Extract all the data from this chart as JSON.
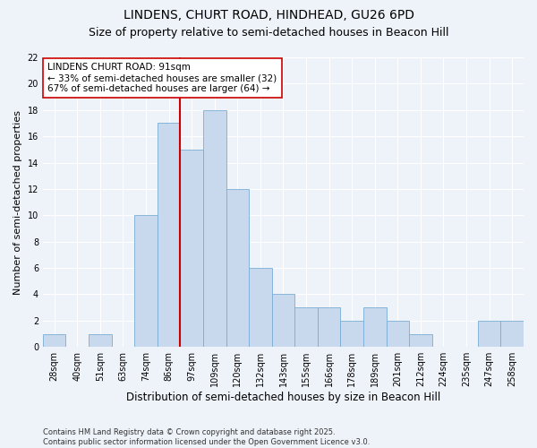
{
  "title": "LINDENS, CHURT ROAD, HINDHEAD, GU26 6PD",
  "subtitle": "Size of property relative to semi-detached houses in Beacon Hill",
  "xlabel": "Distribution of semi-detached houses by size in Beacon Hill",
  "ylabel": "Number of semi-detached properties",
  "categories": [
    "28sqm",
    "40sqm",
    "51sqm",
    "63sqm",
    "74sqm",
    "86sqm",
    "97sqm",
    "109sqm",
    "120sqm",
    "132sqm",
    "143sqm",
    "155sqm",
    "166sqm",
    "178sqm",
    "189sqm",
    "201sqm",
    "212sqm",
    "224sqm",
    "235sqm",
    "247sqm",
    "258sqm"
  ],
  "values": [
    1,
    0,
    1,
    0,
    10,
    17,
    15,
    18,
    12,
    6,
    4,
    3,
    3,
    2,
    3,
    2,
    1,
    0,
    0,
    2,
    2
  ],
  "bar_color": "#c8d8ed",
  "bar_edge_color": "#7aadd4",
  "vline_color": "#cc0000",
  "vline_x_index": 6,
  "annotation_title": "LINDENS CHURT ROAD: 91sqm",
  "annotation_line1": "← 33% of semi-detached houses are smaller (32)",
  "annotation_line2": "67% of semi-detached houses are larger (64) →",
  "annotation_box_facecolor": "#ffffff",
  "annotation_box_edgecolor": "#cc0000",
  "ylim": [
    0,
    22
  ],
  "yticks": [
    0,
    2,
    4,
    6,
    8,
    10,
    12,
    14,
    16,
    18,
    20,
    22
  ],
  "footnote1": "Contains HM Land Registry data © Crown copyright and database right 2025.",
  "footnote2": "Contains public sector information licensed under the Open Government Licence v3.0.",
  "bg_color": "#eef2f9",
  "grid_color": "#ffffff",
  "title_fontsize": 10,
  "subtitle_fontsize": 9,
  "tick_fontsize": 7,
  "ylabel_fontsize": 8,
  "xlabel_fontsize": 8.5,
  "annot_fontsize": 7.5,
  "footnote_fontsize": 6
}
